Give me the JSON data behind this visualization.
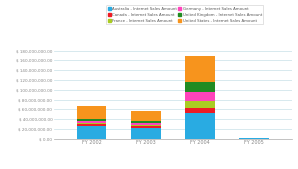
{
  "categories": [
    "FY 2002",
    "FY 2003",
    "FY 2004",
    "FY 2005"
  ],
  "series": {
    "Australia": [
      26000000,
      22000000,
      52000000,
      400000
    ],
    "Canada": [
      3500000,
      2800000,
      10000000,
      50000
    ],
    "France": [
      2500000,
      2200000,
      15000000,
      40000
    ],
    "Germany": [
      4000000,
      4500000,
      18000000,
      60000
    ],
    "United Kingdom": [
      5000000,
      4000000,
      20000000,
      80000
    ],
    "United States": [
      26000000,
      22000000,
      55000000,
      500000
    ]
  },
  "colors": {
    "Australia": "#29ABE2",
    "Canada": "#EE1C25",
    "France": "#AACC22",
    "Germany": "#FF44BB",
    "United Kingdom": "#228B22",
    "United States": "#F7941D"
  },
  "legend_labels": {
    "Australia": "Australia - Internet Sales Amount",
    "Canada": "Canada - Internet Sales Amount",
    "France": "France - Internet Sales Amount",
    "Germany": "Germany - Internet Sales Amount",
    "United Kingdom": "United Kingdom - Internet Sales Amount",
    "United States": "United States - Internet Sales Amount"
  },
  "legend_order": [
    "Australia",
    "Canada",
    "France",
    "Germany",
    "United Kingdom",
    "United States"
  ],
  "ylim": [
    0,
    180000000
  ],
  "yticks": [
    0,
    20000000,
    40000000,
    60000000,
    80000000,
    100000000,
    120000000,
    140000000,
    160000000,
    180000000
  ],
  "ytick_labels": [
    "$ 0.00",
    "$ 20,000,000.00",
    "$ 40,000,000.00",
    "$ 60,000,000.00",
    "$ 80,000,000.00",
    "$ 100,000,000.00",
    "$ 120,000,000.00",
    "$ 140,000,000.00",
    "$ 160,000,000.00",
    "$ 180,000,000.00"
  ],
  "background_color": "#ffffff",
  "grid_color": "#c8e0e8",
  "bar_width": 0.55,
  "figsize": [
    2.98,
    1.69
  ],
  "dpi": 100
}
